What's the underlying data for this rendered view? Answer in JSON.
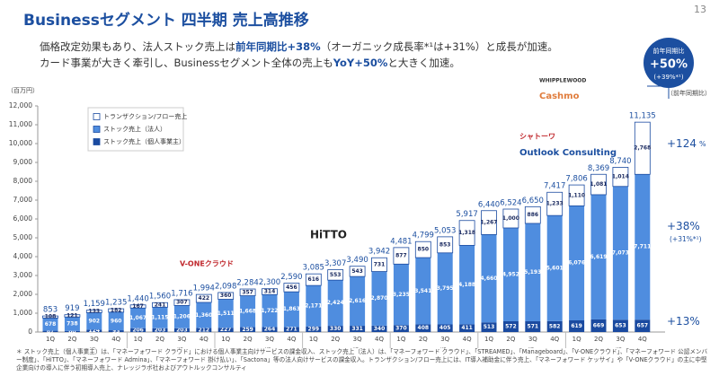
{
  "header": {
    "title": "Businessセグメント 四半期 売上高推移",
    "page": "13",
    "lines": [
      [
        {
          "text": "価格改定効果もあり、法人ストック売上は"
        },
        {
          "text": "前年同期比+38%",
          "emphasis": true
        },
        {
          "text": "（オーガニック成長率*¹は+31%）と成長が加速。"
        }
      ],
      [
        {
          "text": "カード事業が大きく牽引し、Businessセグメント全体の売上も"
        },
        {
          "text": "YoY+50%",
          "emphasis": true
        },
        {
          "text": "と大きく加速。"
        }
      ]
    ]
  },
  "chart_data": {
    "type": "stacked_bar",
    "unit_label": "（百万円）",
    "right_label": "（前年同期比）",
    "categories": [
      "1Q",
      "2Q",
      "3Q",
      "4Q",
      "1Q",
      "2Q",
      "3Q",
      "4Q",
      "1Q",
      "2Q",
      "3Q",
      "4Q",
      "1Q",
      "2Q",
      "3Q",
      "4Q",
      "1Q",
      "2Q",
      "3Q",
      "4Q",
      "1Q",
      "2Q",
      "3Q",
      "4Q",
      "1Q",
      "2Q",
      "3Q",
      "4Q"
    ],
    "periods": [
      "19/11期",
      "20/11期",
      "21/11期",
      "22/11期",
      "23/11期",
      "24/11期",
      "25/11期"
    ],
    "series": [
      {
        "name": "ストック売上（個人事業主）",
        "color": "#1a4aa0",
        "values": [
          67,
          60,
          124,
          93,
          206,
          203,
          203,
          212,
          227,
          259,
          264,
          271,
          299,
          330,
          331,
          340,
          370,
          408,
          405,
          411,
          513,
          572,
          571,
          582,
          619,
          669,
          653,
          657
        ]
      },
      {
        "name": "ストック売上（法人）",
        "color": "#4f8ddf",
        "values": [
          678,
          738,
          902,
          960,
          1067,
          1115,
          1206,
          1360,
          1511,
          1668,
          1722,
          1863,
          2171,
          2424,
          2616,
          2870,
          3235,
          3541,
          3795,
          4188,
          4660,
          4952,
          5193,
          5601,
          6076,
          6619,
          7073,
          7711
        ],
        "value_labels": [
          "678",
          "738",
          "902",
          "960",
          "1,067",
          "1,115",
          "1,206",
          "1,360",
          "1,511",
          "1,668",
          "1,722",
          "1,863",
          "2,171",
          "2,424",
          "2,616",
          "2,870",
          "3,235",
          "3,541",
          "3,795",
          "4,188",
          "4,660",
          "4,952",
          "5,193",
          "5,601",
          "6,076",
          "6,619",
          "7,073",
          "7,711"
        ]
      },
      {
        "name": "トランザクション/フロー売上",
        "color": "#ffffff",
        "values": [
          108,
          121,
          133,
          182,
          167,
          241,
          307,
          422,
          360,
          357,
          314,
          456,
          616,
          553,
          543,
          731,
          877,
          850,
          853,
          1318,
          1267,
          1000,
          886,
          1233,
          1110,
          1081,
          1014,
          2768
        ],
        "value_labels": [
          "108",
          "121",
          "133",
          "182",
          "167",
          "241",
          "307",
          "422",
          "360",
          "357",
          "314",
          "456",
          "616",
          "553",
          "543",
          "731",
          "877",
          "850",
          "853",
          "1,318",
          "1,267",
          "1,000",
          "886",
          "1,233",
          "1,110",
          "1,081",
          "1,014",
          "2,768"
        ]
      }
    ],
    "totals": [
      853,
      919,
      1159,
      1235,
      1440,
      1560,
      1716,
      1994,
      2098,
      2284,
      2300,
      2590,
      3085,
      3307,
      3490,
      3942,
      4481,
      4799,
      5053,
      5917,
      6440,
      6524,
      6650,
      7417,
      7806,
      8369,
      8740,
      11135
    ],
    "total_labels": [
      "853",
      "919",
      "1,159",
      "1,235",
      "1,440",
      "1,560",
      "1,716",
      "1,994",
      "2,098",
      "2,284",
      "2,300",
      "2,590",
      "3,085",
      "3,307",
      "3,490",
      "3,942",
      "4,481",
      "4,799",
      "5,053",
      "5,917",
      "6,440",
      "6,524",
      "6,650",
      "7,417",
      "7,806",
      "8,369",
      "8,740",
      "11,135"
    ],
    "ylim": [
      0,
      12000
    ],
    "yticks": [
      0,
      {
        "value": 1000,
        "label": "1,000"
      },
      {
        "value": 2000,
        "label": "2,000"
      },
      {
        "value": 3000,
        "label": "3,000"
      },
      {
        "value": 4000,
        "label": "4,000"
      },
      {
        "value": 5000,
        "label": "5,000"
      },
      {
        "value": 6000,
        "label": "6,000"
      },
      {
        "value": 7000,
        "label": "7,000"
      },
      {
        "value": 8000,
        "label": "8,000"
      },
      {
        "value": 9000,
        "label": "9,000"
      },
      {
        "value": 10000,
        "label": "10,000"
      },
      {
        "value": 11000,
        "label": "11,000"
      },
      {
        "value": 12000,
        "label": "12,000"
      }
    ],
    "growth": [
      {
        "label": "+124",
        "unit": "%"
      },
      {
        "label": "+38%",
        "sub": "(+31%*¹)"
      },
      {
        "label": "+13%"
      }
    ],
    "bubble": {
      "caption": "前年同期比",
      "label": "+50%",
      "sub": "(+39%*¹)"
    },
    "logos": [
      "V-ONEクラウド",
      "HiTTO",
      "シャトーワ",
      "Outlook Consulting",
      "WHIPPLEWOOD",
      "Cashmo"
    ]
  },
  "footnote": "＊ ストック売上（個人事業主）は、「マネーフォワード クラウド」における個人事業主向けサービスの課金収入、ストック売上（法人）は、「マネーフォワード クラウド」、「STREAMED」、「Manageboard」、「V-ONEクラウド」、「マネーフォワード 公認メンバー制度」、「HiTTO」、「マネーフォワード Admina」、「マネーフォワード 掛け払い」、「Sactona」等の法人向けサービスの課金収入。トランザクション/フロー売上には、IT導入補助金に伴う売上、「マネーフォワード ケッサイ」や「V-ONEクラウド」の主に中堅企業向けの導入に伴う初期導入売上、ナレッジラボ社およびアウトルックコンサルティ"
}
